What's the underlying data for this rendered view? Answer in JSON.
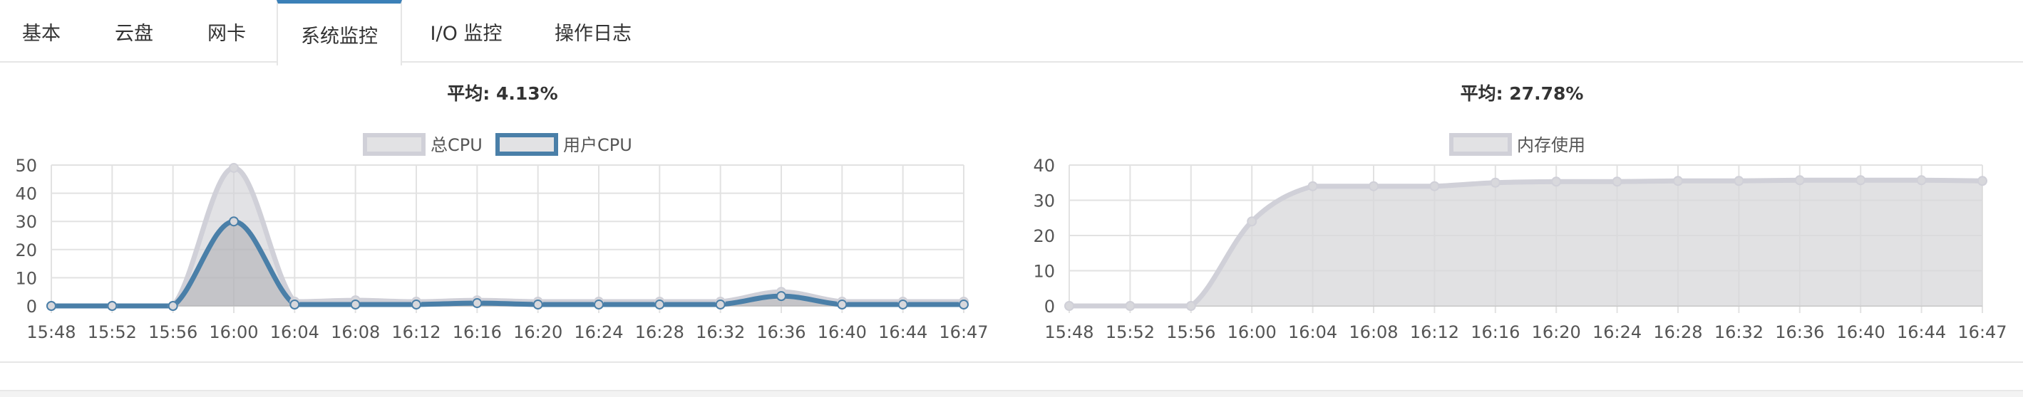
{
  "tabs": [
    {
      "label": "基本",
      "active": false
    },
    {
      "label": "云盘",
      "active": false
    },
    {
      "label": "网卡",
      "active": false
    },
    {
      "label": "系统监控",
      "active": true
    },
    {
      "label": "I/O 监控",
      "active": false
    },
    {
      "label": "操作日志",
      "active": false
    }
  ],
  "colors": {
    "accent": "#3b80b8",
    "series_gray": "#d0d0d8",
    "series_gray_fill": "#e0e0e0",
    "series_blue": "#4a7fa8",
    "grid": "#e2e2e2"
  },
  "chart_data": [
    {
      "type": "area",
      "title": "平均: 4.13%",
      "legend_position": "top-center",
      "x": [
        "15:48",
        "15:52",
        "15:56",
        "16:00",
        "16:04",
        "16:08",
        "16:12",
        "16:16",
        "16:20",
        "16:24",
        "16:28",
        "16:32",
        "16:36",
        "16:40",
        "16:44",
        "16:47"
      ],
      "ylim": [
        0,
        50
      ],
      "yticks": [
        0,
        10,
        20,
        30,
        40,
        50
      ],
      "grid": true,
      "series": [
        {
          "name": "总CPU",
          "values": [
            0,
            0,
            0,
            49,
            1.5,
            2,
            1.5,
            2,
            1.5,
            1.5,
            1.5,
            1.5,
            5,
            1.5,
            1.5,
            1.5
          ]
        },
        {
          "name": "用户CPU",
          "values": [
            0,
            0,
            0,
            30,
            0.5,
            0.5,
            0.5,
            1,
            0.5,
            0.5,
            0.5,
            0.5,
            3.5,
            0.5,
            0.5,
            0.5
          ]
        }
      ]
    },
    {
      "type": "area",
      "title": "平均: 27.78%",
      "legend_position": "top-center",
      "x": [
        "15:48",
        "15:52",
        "15:56",
        "16:00",
        "16:04",
        "16:08",
        "16:12",
        "16:16",
        "16:20",
        "16:24",
        "16:28",
        "16:32",
        "16:36",
        "16:40",
        "16:44",
        "16:47"
      ],
      "ylim": [
        0,
        40
      ],
      "yticks": [
        0,
        10,
        20,
        30,
        40
      ],
      "grid": true,
      "series": [
        {
          "name": "内存使用",
          "values": [
            0,
            0,
            0,
            24,
            34,
            34,
            34,
            35,
            35.3,
            35.3,
            35.5,
            35.5,
            35.7,
            35.7,
            35.7,
            35.5
          ]
        }
      ]
    }
  ]
}
